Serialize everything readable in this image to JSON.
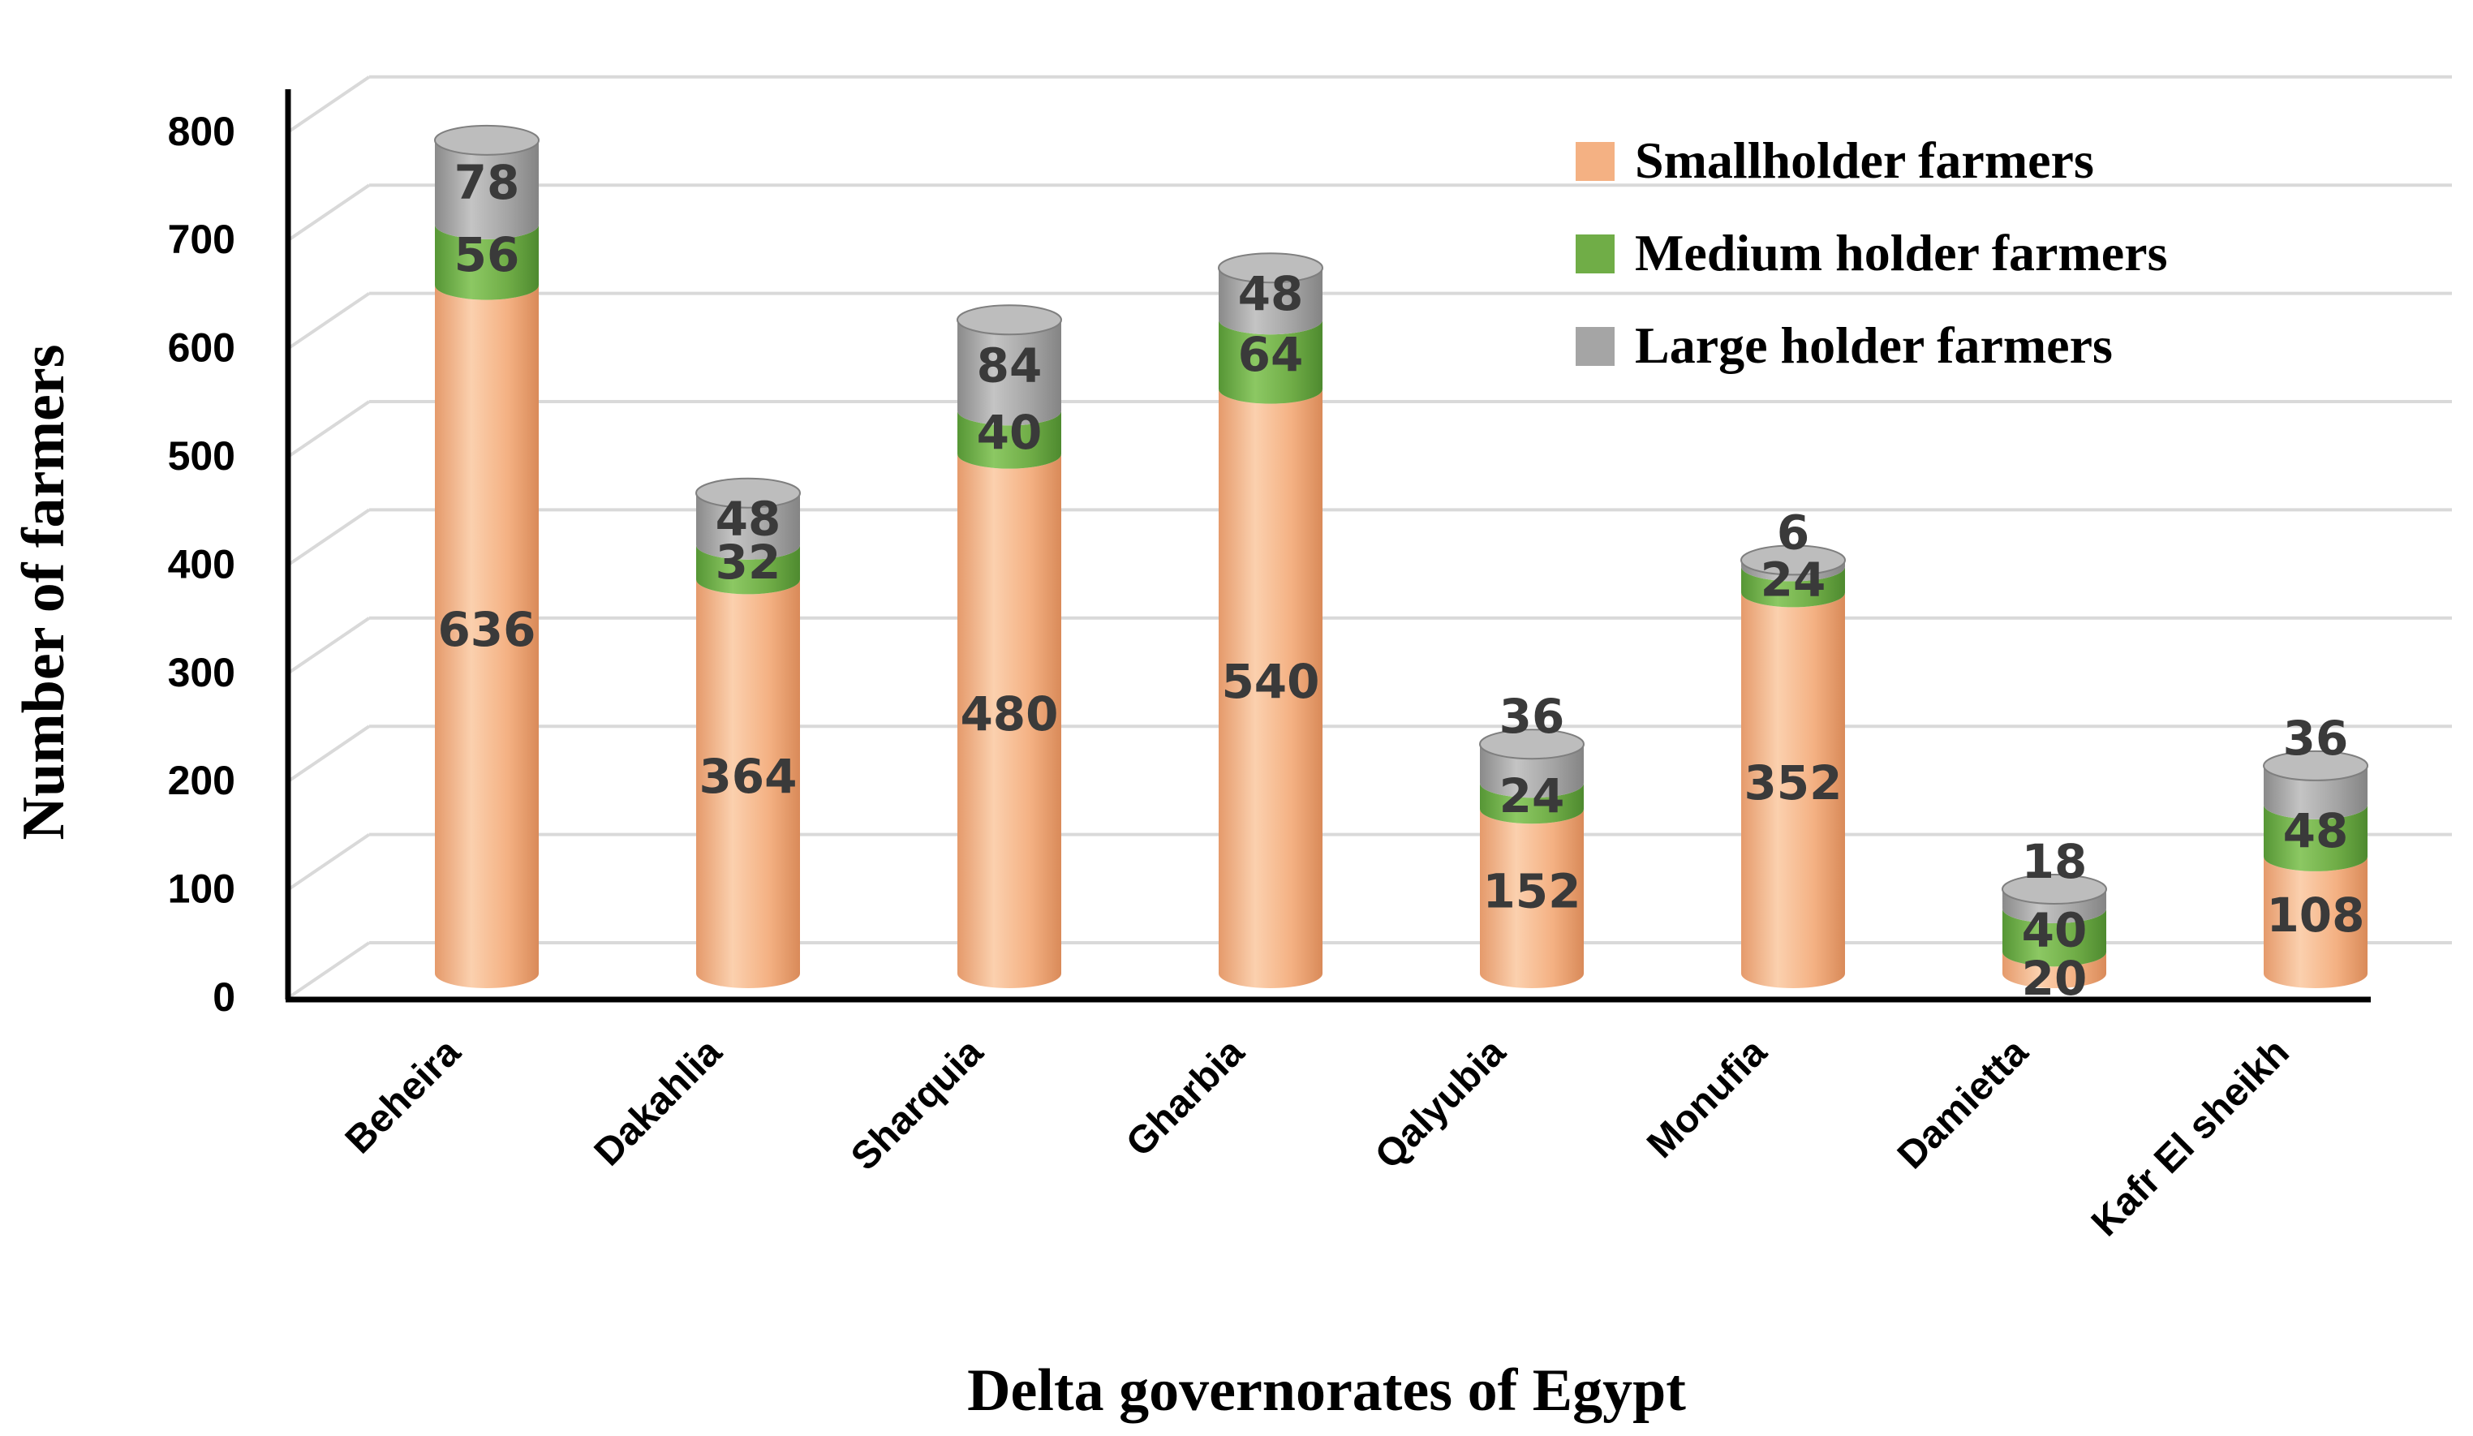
{
  "chart_data": {
    "type": "bar",
    "stacked": true,
    "style": "3d-cylinder",
    "categories": [
      "Beheira",
      "Dakahlia",
      "Sharquia",
      "Gharbia",
      "Qalyubia",
      "Monufia",
      "Damietta",
      "Kafr El sheikh"
    ],
    "series": [
      {
        "name": "Smallholder farmers",
        "color": "#f4b183",
        "values": [
          636,
          364,
          480,
          540,
          152,
          352,
          20,
          108
        ]
      },
      {
        "name": "Medium holder farmers",
        "color": "#70ad47",
        "values": [
          56,
          32,
          40,
          64,
          24,
          24,
          40,
          48
        ]
      },
      {
        "name": "Large holder farmers",
        "color": "#a5a5a5",
        "values": [
          78,
          48,
          84,
          48,
          36,
          6,
          18,
          36
        ]
      }
    ],
    "title": "",
    "xlabel": "Delta governorates of Egypt",
    "ylabel": "Number of farmers",
    "ylim": [
      0,
      800
    ],
    "yticks": [
      0,
      100,
      200,
      300,
      400,
      500,
      600,
      700,
      800
    ],
    "grid": true,
    "legend": "top-right"
  }
}
